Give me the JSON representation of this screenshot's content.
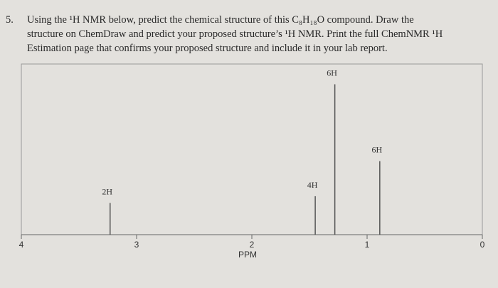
{
  "question": {
    "number": "5.",
    "lines": [
      "Using the ¹H NMR below, predict the chemical structure of this C₈H₁₈O compound. Draw the",
      "structure on ChemDraw and predict your proposed structure’s ¹H NMR. Print the full ChemNMR ¹H",
      "Estimation page that confirms your proposed structure and include it in your lab report."
    ]
  },
  "chart_data": {
    "type": "nmr",
    "xlabel": "PPM",
    "xlim": [
      4,
      0
    ],
    "xticks": [
      4,
      3,
      2,
      1,
      0
    ],
    "ylim": [
      0,
      100
    ],
    "x": [
      3.23,
      1.45,
      1.28,
      0.89
    ],
    "values": [
      19,
      23,
      90,
      44
    ],
    "annotations": [
      "2H",
      "4H",
      "6H",
      "6H"
    ],
    "color": "#555"
  }
}
